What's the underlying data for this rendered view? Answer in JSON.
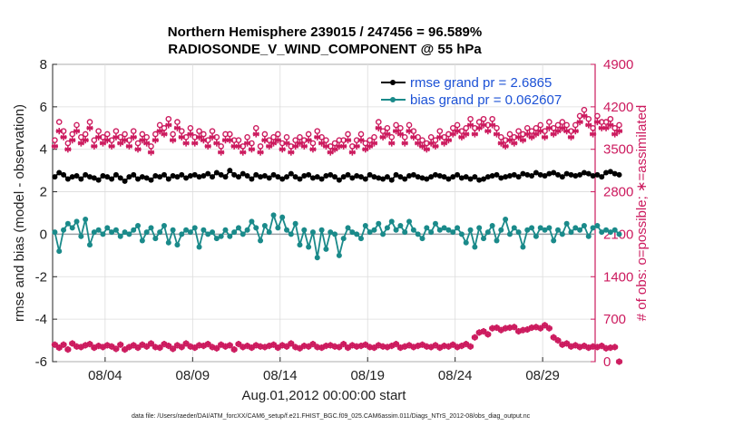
{
  "chart_data": {
    "type": "line",
    "title_line1": "Northern Hemisphere 239015 / 247456 = 96.589%",
    "title_line2": "RADIOSONDE_V_WIND_COMPONENT @ 55 hPa",
    "xlabel": "Aug.01,2012 00:00:00 start",
    "ylabel_left": "rmse and bias (model - observation)",
    "ylabel_right": "# of obs: o=possible; ∗=assimilated",
    "footnote": "data file: /Users/raeder/DAI/ATM_forcXX/CAM6_setup/f.e21.FHIST_BGC.f09_025.CAM6assim.011/Diags_NTrS_2012-08/obs_diag_output.nc",
    "x_tick_labels": [
      "08/04",
      "08/09",
      "08/14",
      "08/19",
      "08/24",
      "08/29"
    ],
    "x_tick_days": [
      4,
      9,
      14,
      19,
      24,
      29
    ],
    "xlim_days": [
      1,
      32
    ],
    "ylim_left": [
      -6,
      8
    ],
    "y_ticks_left": [
      -6,
      -4,
      -2,
      0,
      2,
      4,
      6,
      8
    ],
    "ylim_right": [
      0,
      4900
    ],
    "y_ticks_right": [
      0,
      700,
      1400,
      2100,
      2800,
      3500,
      4200,
      4900
    ],
    "legend": [
      {
        "label": "rmse grand pr = 2.6865",
        "color": "#000000"
      },
      {
        "label": "bias grand pr = 0.062607",
        "color": "#1a8a8a"
      }
    ],
    "colors": {
      "rmse": "#000000",
      "bias": "#1a8a8a",
      "obs": "#cc1a5e",
      "zero_line": "#9aa0a6"
    },
    "step_days": 0.25,
    "series": [
      {
        "name": "rmse",
        "axis": "left",
        "values": [
          2.7,
          2.9,
          2.8,
          2.6,
          2.7,
          2.75,
          2.6,
          2.8,
          2.7,
          2.65,
          2.55,
          2.75,
          2.7,
          2.6,
          2.8,
          2.65,
          2.5,
          2.7,
          2.8,
          2.6,
          2.7,
          2.65,
          2.55,
          2.75,
          2.7,
          2.8,
          2.6,
          2.75,
          2.7,
          2.8,
          2.65,
          2.75,
          2.8,
          2.7,
          2.75,
          2.85,
          2.7,
          2.9,
          2.8,
          2.7,
          3.0,
          2.8,
          2.7,
          2.85,
          2.75,
          2.6,
          2.8,
          2.7,
          2.75,
          2.65,
          2.8,
          2.7,
          2.6,
          2.7,
          2.85,
          2.7,
          2.6,
          2.75,
          2.8,
          2.65,
          2.7,
          2.6,
          2.75,
          2.8,
          2.7,
          2.55,
          2.7,
          2.8,
          2.65,
          2.75,
          2.7,
          2.6,
          2.8,
          2.7,
          2.65,
          2.6,
          2.7,
          2.55,
          2.8,
          2.7,
          2.6,
          2.75,
          2.8,
          2.7,
          2.65,
          2.6,
          2.7,
          2.8,
          2.75,
          2.7,
          2.6,
          2.7,
          2.8,
          2.65,
          2.7,
          2.6,
          2.7,
          2.55,
          2.6,
          2.7,
          2.75,
          2.8,
          2.65,
          2.7,
          2.75,
          2.8,
          2.7,
          2.85,
          2.8,
          2.75,
          2.9,
          2.8,
          2.75,
          2.85,
          2.9,
          2.8,
          2.7,
          2.85,
          2.8,
          2.75,
          2.8,
          2.9,
          2.85,
          2.75,
          2.8,
          2.7,
          2.9,
          2.95,
          2.85,
          2.8
        ]
      },
      {
        "name": "bias",
        "axis": "left",
        "values": [
          0.1,
          -0.8,
          0.2,
          0.5,
          0.3,
          0.6,
          -0.1,
          0.7,
          -0.5,
          0.1,
          0.2,
          0.0,
          0.3,
          0.1,
          0.2,
          -0.1,
          0.1,
          0.0,
          0.2,
          0.4,
          -0.3,
          0.1,
          0.3,
          -0.2,
          0.1,
          0.4,
          -0.4,
          0.2,
          -0.5,
          0.0,
          0.2,
          0.1,
          0.3,
          -0.6,
          0.2,
          0.0,
          0.1,
          -0.2,
          -0.1,
          0.2,
          -0.1,
          0.1,
          0.3,
          0.0,
          0.2,
          0.6,
          0.3,
          -0.3,
          0.4,
          0.1,
          0.9,
          0.3,
          0.8,
          0.2,
          0.0,
          0.5,
          -0.5,
          0.2,
          -0.6,
          0.1,
          -1.1,
          0.2,
          -0.7,
          0.1,
          0.0,
          -1.0,
          -0.2,
          0.3,
          0.1,
          0.0,
          -0.2,
          0.4,
          0.1,
          0.2,
          0.5,
          0.0,
          0.3,
          0.6,
          0.2,
          0.4,
          0.1,
          0.6,
          0.2,
          0.0,
          -0.2,
          0.3,
          0.1,
          0.5,
          0.2,
          0.3,
          0.2,
          0.1,
          0.3,
          0.0,
          -0.4,
          0.2,
          -0.6,
          0.3,
          -0.2,
          0.1,
          0.4,
          -0.3,
          0.2,
          0.7,
          0.0,
          0.3,
          0.1,
          -0.6,
          0.2,
          0.3,
          -0.1,
          0.3,
          0.2,
          0.3,
          -0.3,
          0.2,
          0.0,
          0.5,
          0.1,
          0.3,
          0.2,
          0.4,
          -0.1,
          0.3,
          0.4,
          0.1,
          0.2,
          0.1,
          0.2,
          0.0
        ]
      },
      {
        "name": "possible",
        "axis": "right",
        "values": [
          3650,
          3950,
          3800,
          3600,
          3750,
          3900,
          3700,
          3750,
          3950,
          3650,
          3800,
          3700,
          3750,
          3650,
          3800,
          3700,
          3750,
          3650,
          3800,
          3600,
          3750,
          3700,
          3550,
          3750,
          3900,
          3850,
          4000,
          3750,
          3950,
          3800,
          3700,
          3850,
          3700,
          3800,
          3750,
          3650,
          3800,
          3700,
          3550,
          3750,
          3750,
          3650,
          3650,
          3550,
          3700,
          3600,
          3850,
          3550,
          3750,
          3650,
          3700,
          3750,
          3600,
          3700,
          3550,
          3650,
          3700,
          3650,
          3750,
          3600,
          3800,
          3700,
          3650,
          3550,
          3600,
          3650,
          3650,
          3750,
          3550,
          3650,
          3750,
          3600,
          3650,
          3700,
          3950,
          3800,
          3850,
          3700,
          3900,
          3850,
          3700,
          3900,
          3800,
          3700,
          3650,
          3600,
          3700,
          3650,
          3800,
          3700,
          3750,
          3850,
          3900,
          3800,
          3850,
          4000,
          3850,
          3950,
          4000,
          3900,
          4000,
          3850,
          3700,
          3650,
          3750,
          3700,
          3800,
          3750,
          3850,
          3800,
          3850,
          3900,
          3800,
          3950,
          3850,
          3900,
          3950,
          3900,
          3800,
          3900,
          4050,
          4150,
          4000,
          3850,
          4050,
          3950,
          3950,
          4000,
          3850,
          3900
        ]
      },
      {
        "name": "assimilated",
        "axis": "right",
        "values": [
          3550,
          3800,
          3700,
          3500,
          3650,
          3800,
          3600,
          3650,
          3850,
          3550,
          3700,
          3600,
          3650,
          3550,
          3700,
          3600,
          3650,
          3550,
          3700,
          3500,
          3650,
          3600,
          3450,
          3650,
          3800,
          3750,
          3900,
          3650,
          3850,
          3700,
          3600,
          3750,
          3600,
          3700,
          3650,
          3550,
          3700,
          3600,
          3450,
          3650,
          3650,
          3550,
          3550,
          3450,
          3600,
          3500,
          3750,
          3450,
          3650,
          3550,
          3600,
          3650,
          3500,
          3600,
          3450,
          3550,
          3600,
          3550,
          3650,
          3500,
          3700,
          3600,
          3550,
          3450,
          3500,
          3550,
          3550,
          3650,
          3450,
          3550,
          3650,
          3500,
          3550,
          3600,
          3850,
          3700,
          3750,
          3600,
          3800,
          3750,
          3600,
          3800,
          3700,
          3600,
          3550,
          3500,
          3600,
          3550,
          3700,
          3600,
          3650,
          3750,
          3800,
          3700,
          3750,
          3900,
          3750,
          3850,
          3900,
          3800,
          3900,
          3750,
          3600,
          3550,
          3650,
          3600,
          3700,
          3650,
          3750,
          3700,
          3750,
          3800,
          3700,
          3850,
          3750,
          3800,
          3850,
          3800,
          3700,
          3800,
          3950,
          4050,
          3900,
          3750,
          3950,
          3850,
          3850,
          3900,
          3750,
          3800
        ]
      },
      {
        "name": "possible-low",
        "axis": "right",
        "values": [
          280,
          230,
          280,
          200,
          300,
          250,
          240,
          270,
          290,
          230,
          260,
          240,
          270,
          250,
          210,
          280,
          200,
          240,
          270,
          230,
          280,
          250,
          300,
          240,
          230,
          290,
          260,
          210,
          270,
          240,
          300,
          250,
          230,
          270,
          260,
          290,
          240,
          220,
          280,
          250,
          270,
          200,
          290,
          240,
          260,
          230,
          270,
          250,
          240,
          260,
          280,
          230,
          270,
          250,
          300,
          240,
          220,
          260,
          250,
          290,
          240,
          230,
          260,
          270,
          250,
          240,
          290,
          230,
          270,
          250,
          260,
          280,
          240,
          230,
          270,
          250,
          240,
          260,
          290,
          230,
          250,
          270,
          240,
          260,
          280,
          250,
          240,
          270,
          230,
          260,
          250,
          280,
          240,
          260,
          290,
          250,
          400,
          480,
          500,
          450,
          550,
          560,
          520,
          550,
          560,
          570,
          500,
          520,
          530,
          560,
          570,
          550,
          600,
          550,
          400,
          350,
          280,
          300,
          250,
          270,
          240,
          260,
          230,
          250,
          240,
          260,
          220,
          230,
          240,
          0
        ]
      }
    ]
  }
}
